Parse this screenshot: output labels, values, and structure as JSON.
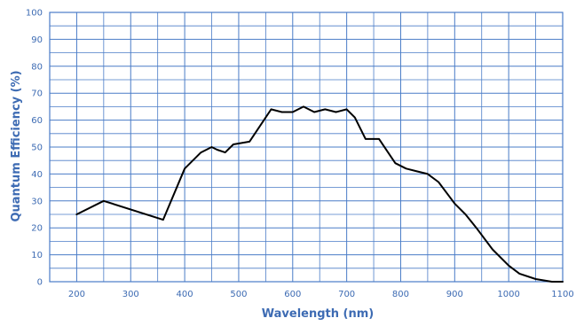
{
  "chart_data": {
    "type": "line",
    "title": "",
    "xlabel": "Wavelength (nm)",
    "ylabel": "Quantum Efficiency (%)",
    "xlim": [
      150,
      1100
    ],
    "ylim": [
      0,
      100
    ],
    "x_ticks": [
      200,
      300,
      400,
      500,
      600,
      700,
      800,
      900,
      1000,
      1100
    ],
    "y_ticks": [
      0,
      10,
      20,
      30,
      40,
      50,
      60,
      70,
      80,
      90,
      100
    ],
    "grid": true,
    "colors": {
      "grid": "#4a7cc7",
      "labels": "#3d6bb3",
      "line": "#000000"
    },
    "series": [
      {
        "x": [
          200,
          250,
          360,
          400,
          430,
          450,
          460,
          475,
          490,
          520,
          560,
          580,
          600,
          620,
          640,
          660,
          680,
          700,
          715,
          735,
          760,
          790,
          810,
          830,
          850,
          870,
          900,
          920,
          940,
          970,
          1000,
          1020,
          1050,
          1080,
          1100
        ],
        "y": [
          25,
          30,
          23,
          42,
          48,
          50,
          49,
          48,
          51,
          52,
          64,
          63,
          63,
          65,
          63,
          64,
          63,
          64,
          61,
          53,
          53,
          44,
          42,
          41,
          40,
          37,
          29,
          25,
          20,
          12,
          6,
          3,
          1,
          0,
          0
        ]
      }
    ]
  }
}
